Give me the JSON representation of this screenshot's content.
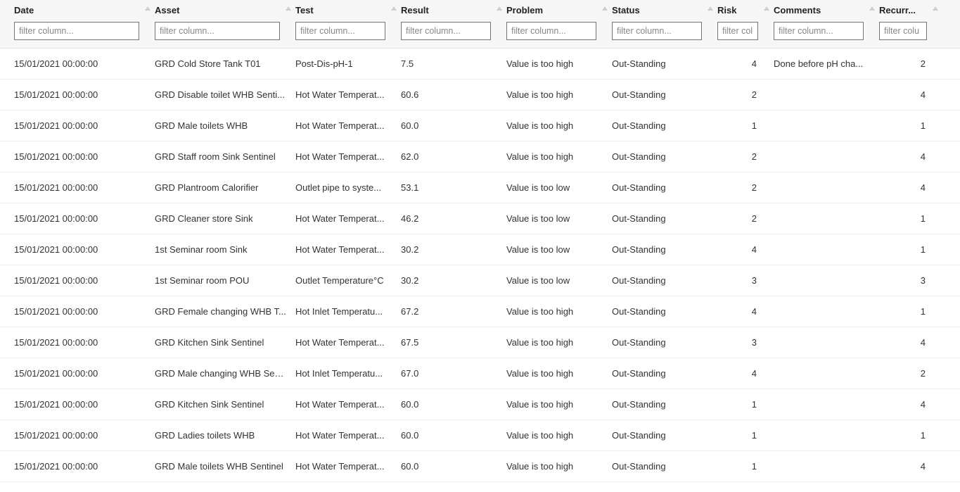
{
  "table": {
    "columns": [
      {
        "key": "date",
        "label": "Date",
        "class": "c-date",
        "align": "left",
        "filter_placeholder": "filter column..."
      },
      {
        "key": "asset",
        "label": "Asset",
        "class": "c-asset",
        "align": "left",
        "filter_placeholder": "filter column..."
      },
      {
        "key": "test",
        "label": "Test",
        "class": "c-test",
        "align": "left",
        "filter_placeholder": "filter column..."
      },
      {
        "key": "result",
        "label": "Result",
        "class": "c-result",
        "align": "left",
        "filter_placeholder": "filter column..."
      },
      {
        "key": "problem",
        "label": "Problem",
        "class": "c-problem",
        "align": "left",
        "filter_placeholder": "filter column..."
      },
      {
        "key": "status",
        "label": "Status",
        "class": "c-status",
        "align": "left",
        "filter_placeholder": "filter column..."
      },
      {
        "key": "risk",
        "label": "Risk",
        "class": "c-risk",
        "align": "right",
        "filter_placeholder": "filter colu"
      },
      {
        "key": "comments",
        "label": "Comments",
        "class": "c-comments",
        "align": "left",
        "filter_placeholder": "filter column..."
      },
      {
        "key": "recurr",
        "label": "Recurr...",
        "class": "c-recurr",
        "align": "right",
        "filter_placeholder": "filter colu"
      }
    ],
    "sort_icon_color": "#cfcfcf",
    "header_bg": "#f7f7f7",
    "row_border_color": "#eee",
    "rows": [
      {
        "date": "15/01/2021 00:00:00",
        "asset": "GRD Cold Store Tank T01",
        "test": "Post-Dis-pH-1",
        "result": "7.5",
        "problem": "Value is too high",
        "status": "Out-Standing",
        "risk": "4",
        "comments": "Done before pH cha...",
        "recurr": "2"
      },
      {
        "date": "15/01/2021 00:00:00",
        "asset": "GRD Disable toilet WHB Senti...",
        "test": "Hot Water Temperat...",
        "result": "60.6",
        "problem": "Value is too high",
        "status": "Out-Standing",
        "risk": "2",
        "comments": "",
        "recurr": "4"
      },
      {
        "date": "15/01/2021 00:00:00",
        "asset": "GRD Male toilets WHB",
        "test": "Hot Water Temperat...",
        "result": "60.0",
        "problem": "Value is too high",
        "status": "Out-Standing",
        "risk": "1",
        "comments": "",
        "recurr": "1"
      },
      {
        "date": "15/01/2021 00:00:00",
        "asset": "GRD Staff room Sink Sentinel",
        "test": "Hot Water Temperat...",
        "result": "62.0",
        "problem": "Value is too high",
        "status": "Out-Standing",
        "risk": "2",
        "comments": "",
        "recurr": "4"
      },
      {
        "date": "15/01/2021 00:00:00",
        "asset": "GRD Plantroom Calorifier",
        "test": "Outlet pipe to syste...",
        "result": "53.1",
        "problem": "Value is too low",
        "status": "Out-Standing",
        "risk": "2",
        "comments": "",
        "recurr": "4"
      },
      {
        "date": "15/01/2021 00:00:00",
        "asset": "GRD Cleaner store Sink",
        "test": "Hot Water Temperat...",
        "result": "46.2",
        "problem": "Value is too low",
        "status": "Out-Standing",
        "risk": "2",
        "comments": "",
        "recurr": "1"
      },
      {
        "date": "15/01/2021 00:00:00",
        "asset": "1st Seminar room Sink",
        "test": "Hot Water Temperat...",
        "result": "30.2",
        "problem": "Value is too low",
        "status": "Out-Standing",
        "risk": "4",
        "comments": "",
        "recurr": "1"
      },
      {
        "date": "15/01/2021 00:00:00",
        "asset": "1st Seminar room POU",
        "test": "Outlet Temperature°C",
        "result": "30.2",
        "problem": "Value is too low",
        "status": "Out-Standing",
        "risk": "3",
        "comments": "",
        "recurr": "3"
      },
      {
        "date": "15/01/2021 00:00:00",
        "asset": "GRD Female changing WHB T...",
        "test": "Hot Inlet Temperatu...",
        "result": "67.2",
        "problem": "Value is too high",
        "status": "Out-Standing",
        "risk": "4",
        "comments": "",
        "recurr": "1"
      },
      {
        "date": "15/01/2021 00:00:00",
        "asset": "GRD Kitchen Sink Sentinel",
        "test": "Hot Water Temperat...",
        "result": "67.5",
        "problem": "Value is too high",
        "status": "Out-Standing",
        "risk": "3",
        "comments": "",
        "recurr": "4"
      },
      {
        "date": "15/01/2021 00:00:00",
        "asset": "GRD Male changing WHB Sen...",
        "test": "Hot Inlet Temperatu...",
        "result": "67.0",
        "problem": "Value is too high",
        "status": "Out-Standing",
        "risk": "4",
        "comments": "",
        "recurr": "2"
      },
      {
        "date": "15/01/2021 00:00:00",
        "asset": "GRD Kitchen Sink Sentinel",
        "test": "Hot Water Temperat...",
        "result": "60.0",
        "problem": "Value is too high",
        "status": "Out-Standing",
        "risk": "1",
        "comments": "",
        "recurr": "4"
      },
      {
        "date": "15/01/2021 00:00:00",
        "asset": "GRD Ladies toilets WHB",
        "test": "Hot Water Temperat...",
        "result": "60.0",
        "problem": "Value is too high",
        "status": "Out-Standing",
        "risk": "1",
        "comments": "",
        "recurr": "1"
      },
      {
        "date": "15/01/2021 00:00:00",
        "asset": "GRD Male toilets WHB Sentinel",
        "test": "Hot Water Temperat...",
        "result": "60.0",
        "problem": "Value is too high",
        "status": "Out-Standing",
        "risk": "1",
        "comments": "",
        "recurr": "4"
      }
    ]
  }
}
